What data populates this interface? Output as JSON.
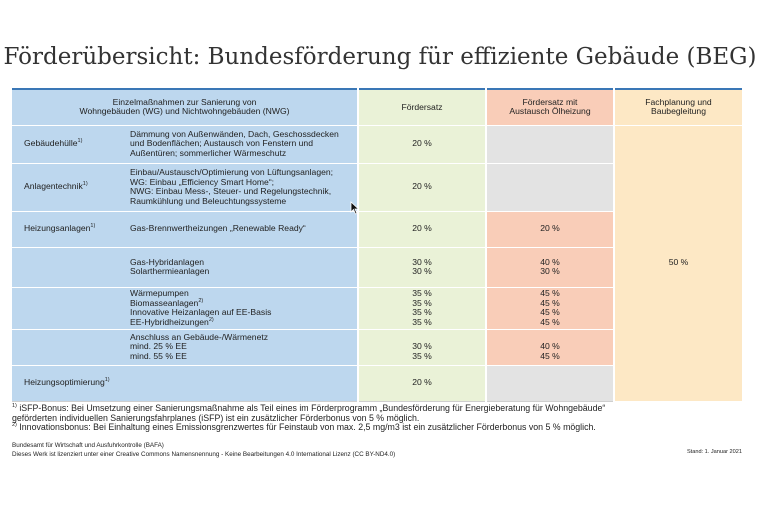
{
  "title": "Förderübersicht: Bundesförderung für effiziente Gebäude (BEG)",
  "header": {
    "col1_line1": "Einzelmaßnahmen zur Sanierung von",
    "col1_line2": "Wohngebäuden (WG) und Nichtwohngebäuden (NWG)",
    "col2": "Fördersatz",
    "col3_line1": "Fördersatz mit",
    "col3_line2": "Austausch Ölheizung",
    "col4_line1": "Fachplanung und",
    "col4_line2": "Baubegleitung"
  },
  "sup_mark": "1)",
  "sup_mark2": "2)",
  "rows": {
    "huelle": {
      "category": "Gebäudehülle",
      "desc": [
        "Dämmung von Außenwänden, Dach, Geschossdecken",
        "und Bodenflächen; Austausch von Fenstern und",
        "Außentüren; sommerlicher Wärmeschutz"
      ],
      "rate": "20 %"
    },
    "anlagen": {
      "category": "Anlagentechnik",
      "desc": [
        "Einbau/Austausch/Optimierung von Lüftungsanlagen;",
        "WG: Einbau „Efficiency Smart Home“;",
        "NWG: Einbau Mess-, Steuer- und Regelungstechnik,",
        "Raumkühlung und Beleuchtungssysteme"
      ],
      "rate": "20 %"
    },
    "heizung": {
      "category": "Heizungsanlagen",
      "gas_brenn": {
        "desc": "Gas-Brennwertheizungen „Renewable Ready“",
        "rate": "20 %",
        "oil": "20 %"
      },
      "hybrid": {
        "desc": [
          "Gas-Hybridanlagen",
          "Solarthermieanlagen"
        ],
        "rate": [
          "30 %",
          "30 %"
        ],
        "oil": [
          "40 %",
          "30 %"
        ]
      },
      "waerme": {
        "desc": [
          "Wärmepumpen",
          "Biomasseanlagen",
          "Innovative Heizanlagen auf EE-Basis",
          "EE-Hybridheizungen"
        ],
        "rate": [
          "35 %",
          "35 %",
          "35 %",
          "35 %"
        ],
        "oil": [
          "45 %",
          "45 %",
          "45 %",
          "45 %"
        ]
      },
      "netz": {
        "desc": [
          "Anschluss an Gebäude-/Wärmenetz",
          "mind. 25 % EE",
          "mind. 55 % EE"
        ],
        "rate": [
          "30 %",
          "35 %"
        ],
        "oil": [
          "40 %",
          "45 %"
        ]
      }
    },
    "optim": {
      "category": "Heizungsoptimierung",
      "rate": "20 %"
    },
    "fachplanung": "50 %"
  },
  "footnotes": {
    "f1_line1": " iSFP-Bonus: Bei Umsetzung einer Sanierungsmaßnahme als Teil eines im Förderprogramm „Bundesförderung für Energieberatung für Wohngebäude“",
    "f1_line2": "geförderten individuellen Sanierungsfahrplanes (iSFP) ist ein zusätzlicher Förderbonus von 5 % möglich.",
    "f2": " Innovationsbonus: Bei Einhaltung eines Emissionsgrenzwertes für Feinstaub von max. 2,5 mg/m3 ist ein zusätzlicher Förderbonus von 5 % möglich."
  },
  "publisher": "Bundesamt für Wirtschaft und Ausfuhrkontrolle (BAFA)",
  "license": "Dieses Werk ist lizenziert unter einer Creative Commons Namensnennung - Keine Bearbeitungen 4.0 International Lizenz (CC BY-ND4.0)",
  "stand": "Stand: 1. Januar 2021"
}
